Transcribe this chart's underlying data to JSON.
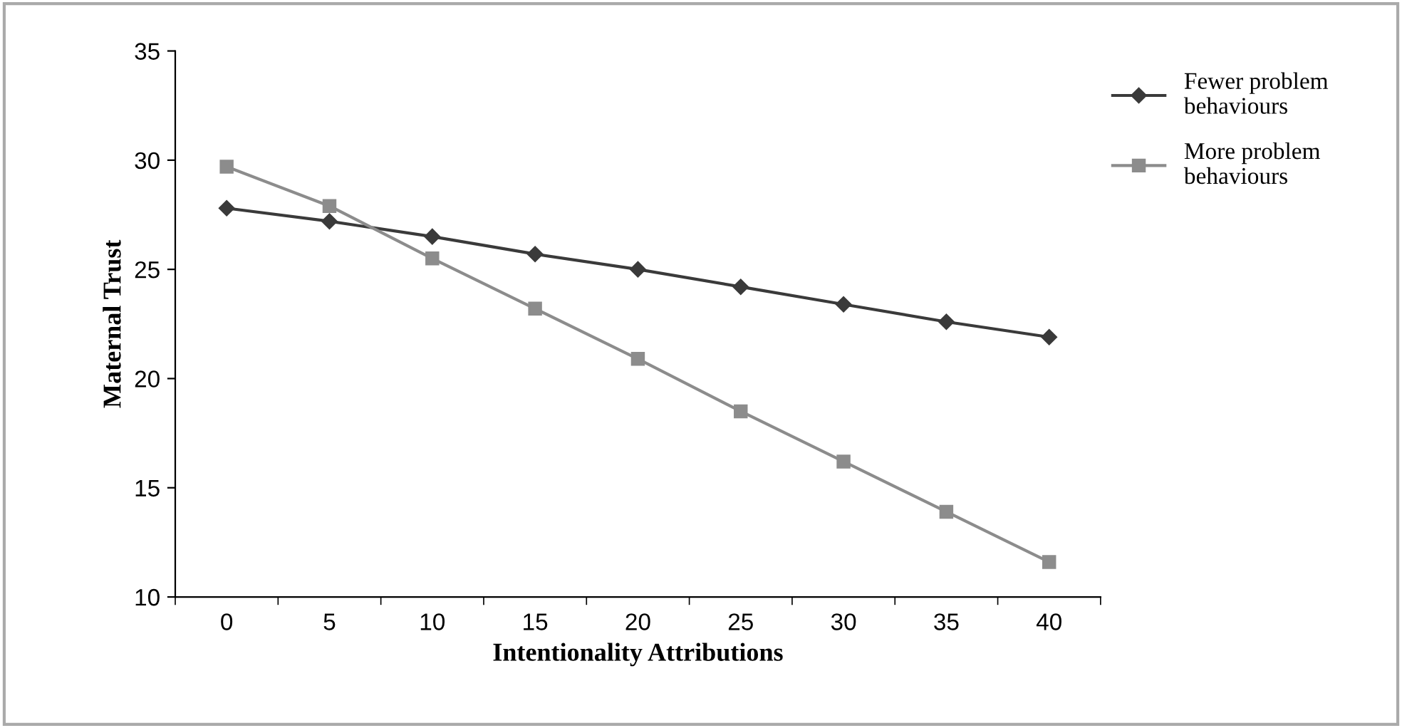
{
  "chart_data": {
    "type": "line",
    "xlabel": "Intentionality Attributions",
    "ylabel": "Maternal Trust",
    "categories": [
      "0",
      "5",
      "10",
      "15",
      "20",
      "25",
      "30",
      "35",
      "40"
    ],
    "series": [
      {
        "name": "Fewer problem behaviours",
        "color": "#3a3a3a",
        "marker": "diamond",
        "values": [
          27.8,
          27.2,
          26.5,
          25.7,
          25.0,
          24.2,
          23.4,
          22.6,
          21.9
        ]
      },
      {
        "name": "More problem behaviours",
        "color": "#8c8c8c",
        "marker": "square",
        "values": [
          29.7,
          27.9,
          25.5,
          23.2,
          20.9,
          18.5,
          16.2,
          13.9,
          11.6
        ]
      }
    ],
    "ylim": [
      10,
      35
    ],
    "yticks": [
      10,
      15,
      20,
      25,
      30,
      35
    ],
    "grid": false,
    "legend": "right",
    "line_style": "solid"
  }
}
